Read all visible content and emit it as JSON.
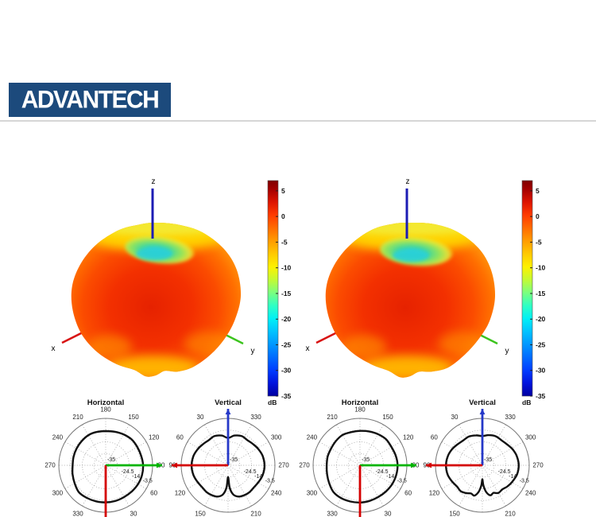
{
  "header": {
    "logo_text": "ADVANTECH",
    "logo_bg": "#1c4a7c",
    "divider_color": "#d6d6d6"
  },
  "colors": {
    "axis_x": "#d81414",
    "axis_y": "#3cc41e",
    "axis_z": "#1c1cb4",
    "arrow_green": "#00b400",
    "arrow_red": "#d40000",
    "arrow_blue": "#2538c8",
    "polar_grid": "#9a9a9a",
    "polar_ring": "#777777",
    "curve": "#111111",
    "label_text": "#222222",
    "top_band": "#ffd800",
    "top_band2": "#f2ee3e",
    "bottom_band": "#ffc400",
    "side_soft": "#ff9a00"
  },
  "colorbar": {
    "unit": "dB",
    "tick_labels": [
      "5",
      "0",
      "-5",
      "-10",
      "-15",
      "-20",
      "-25",
      "-30",
      "-35"
    ],
    "tick_values": [
      5,
      0,
      -5,
      -10,
      -15,
      -20,
      -25,
      -30,
      -35
    ],
    "range_db": [
      -35,
      7
    ],
    "gradient_stops": [
      [
        0,
        "#7f0000"
      ],
      [
        4,
        "#a40000"
      ],
      [
        10,
        "#dd1400"
      ],
      [
        16,
        "#ff3b00"
      ],
      [
        22,
        "#ff6c00"
      ],
      [
        28,
        "#ff9c00"
      ],
      [
        34,
        "#ffc900"
      ],
      [
        40,
        "#fdf100"
      ],
      [
        46,
        "#c4fa33"
      ],
      [
        52,
        "#7bff7f"
      ],
      [
        58,
        "#2fffc4"
      ],
      [
        64,
        "#00f0f5"
      ],
      [
        70,
        "#00c3ff"
      ],
      [
        76,
        "#0097ff"
      ],
      [
        82,
        "#006bff"
      ],
      [
        88,
        "#003cff"
      ],
      [
        94,
        "#0013dd"
      ],
      [
        100,
        "#0000a0"
      ]
    ]
  },
  "blob": {
    "gradient": [
      [
        0,
        "#e62200",
        1
      ],
      [
        40,
        "#f33000",
        1
      ],
      [
        65,
        "#fb4c00",
        1
      ],
      [
        82,
        "#ff6f00",
        1
      ],
      [
        93,
        "#ff8e08",
        1
      ],
      [
        100,
        "#ffa216",
        1
      ]
    ],
    "dimple_gradient": [
      [
        0,
        "#2bd0d8",
        1
      ],
      [
        35,
        "#45d89a",
        1
      ],
      [
        62,
        "#93e45a",
        1
      ],
      [
        82,
        "#e2ec3e",
        0.9
      ],
      [
        100,
        "#ffe600",
        0
      ]
    ]
  },
  "chart_data": [
    {
      "type": "surface3d",
      "position": "left",
      "palette": "jet",
      "axis_labels": {
        "x": "x",
        "y": "y",
        "z": "z"
      },
      "colorbar_unit": "dB",
      "colorbar_ticks": [
        5,
        0,
        -5,
        -10,
        -15,
        -20,
        -25,
        -30,
        -35
      ],
      "colorbar_range": [
        -35,
        7
      ],
      "silhouette": [
        [
          0,
          92
        ],
        [
          18,
          94
        ],
        [
          36,
          99
        ],
        [
          55,
          104
        ],
        [
          72,
          107
        ],
        [
          90,
          107
        ],
        [
          107,
          104
        ],
        [
          122,
          102
        ],
        [
          137,
          101
        ],
        [
          152,
          101
        ],
        [
          164,
          99
        ],
        [
          173,
          95
        ],
        [
          180,
          100
        ],
        [
          187,
          102
        ],
        [
          196,
          97
        ],
        [
          210,
          99
        ],
        [
          226,
          102
        ],
        [
          243,
          105
        ],
        [
          260,
          106
        ],
        [
          276,
          106
        ],
        [
          292,
          103
        ],
        [
          310,
          99
        ],
        [
          330,
          95
        ],
        [
          347,
          92
        ]
      ]
    },
    {
      "type": "surface3d",
      "position": "right",
      "palette": "jet",
      "axis_labels": {
        "x": "x",
        "y": "y",
        "z": "z"
      },
      "colorbar_unit": "dB",
      "colorbar_ticks": [
        5,
        0,
        -5,
        -10,
        -15,
        -20,
        -25,
        -30,
        -35
      ],
      "colorbar_range": [
        -35,
        7
      ],
      "silhouette": [
        [
          0,
          92
        ],
        [
          18,
          95
        ],
        [
          36,
          100
        ],
        [
          55,
          105
        ],
        [
          72,
          107
        ],
        [
          90,
          107
        ],
        [
          107,
          105
        ],
        [
          122,
          102
        ],
        [
          137,
          101
        ],
        [
          152,
          102
        ],
        [
          164,
          99
        ],
        [
          173,
          96
        ],
        [
          180,
          101
        ],
        [
          187,
          103
        ],
        [
          196,
          98
        ],
        [
          210,
          99
        ],
        [
          226,
          102
        ],
        [
          243,
          105
        ],
        [
          260,
          106
        ],
        [
          276,
          106
        ],
        [
          292,
          103
        ],
        [
          310,
          99
        ],
        [
          330,
          96
        ],
        [
          347,
          93
        ]
      ]
    },
    {
      "type": "polar",
      "title": "Horizontal",
      "zero_at": "bottom",
      "direction": "ccw",
      "r_ticks_db": [
        -35,
        -24.5,
        -14,
        -3.5
      ],
      "r_tick_labels": [
        "-35",
        "-24.5",
        "-14",
        "-3.5"
      ],
      "r_range_db": [
        -35,
        7
      ],
      "angle_step_deg": 30,
      "angle_labels": [
        30,
        60,
        90,
        120,
        150,
        180,
        210,
        240,
        270,
        300,
        330
      ],
      "arrows": [
        {
          "at_label": 90,
          "color_key": "arrow_green",
          "clipped": false
        },
        {
          "at_label": 0,
          "color_key": "arrow_red",
          "clipped": true
        }
      ],
      "series_deg_db": [
        [
          0,
          -1.8
        ],
        [
          15,
          -1.9
        ],
        [
          30,
          -2.1
        ],
        [
          45,
          -1.9
        ],
        [
          60,
          -1.5
        ],
        [
          75,
          -1.3
        ],
        [
          90,
          -1.5
        ],
        [
          105,
          -2.1
        ],
        [
          120,
          -2.3
        ],
        [
          135,
          -2.2
        ],
        [
          150,
          -3.0
        ],
        [
          165,
          -3.9
        ],
        [
          180,
          -4.4
        ],
        [
          195,
          -4.1
        ],
        [
          210,
          -3.9
        ],
        [
          225,
          -4.5
        ],
        [
          240,
          -4.9
        ],
        [
          255,
          -5.2
        ],
        [
          270,
          -5.4
        ],
        [
          285,
          -4.3
        ],
        [
          300,
          -2.9
        ],
        [
          315,
          -1.0
        ],
        [
          330,
          -1.3
        ],
        [
          345,
          -1.6
        ]
      ]
    },
    {
      "type": "polar",
      "title": "Vertical",
      "zero_at": "top",
      "direction": "ccw",
      "r_ticks_db": [
        -35,
        -24.5,
        -14,
        -3.5
      ],
      "r_tick_labels": [
        "-35",
        "-24.5",
        "-14",
        "-3.5"
      ],
      "r_range_db": [
        -35,
        7
      ],
      "angle_step_deg": 30,
      "angle_labels": [
        30,
        60,
        90,
        120,
        150,
        210,
        240,
        270,
        300,
        330
      ],
      "arrows": [
        {
          "at_label": 0,
          "color_key": "arrow_blue",
          "clipped": false
        },
        {
          "at_label": 90,
          "color_key": "arrow_red",
          "clipped": false
        }
      ],
      "series_deg_db": [
        [
          0,
          -10.5
        ],
        [
          12,
          -7.8
        ],
        [
          25,
          -6.2
        ],
        [
          38,
          -6.6
        ],
        [
          50,
          -5.6
        ],
        [
          62,
          -4.2
        ],
        [
          75,
          -2.9
        ],
        [
          90,
          -2.3
        ],
        [
          105,
          -2.7
        ],
        [
          118,
          -3.8
        ],
        [
          130,
          -4.6
        ],
        [
          142,
          -4.2
        ],
        [
          152,
          -4.6
        ],
        [
          162,
          -5.6
        ],
        [
          170,
          -8.5
        ],
        [
          176,
          -15
        ],
        [
          180,
          -24.5
        ],
        [
          184,
          -15
        ],
        [
          190,
          -8.5
        ],
        [
          198,
          -5.6
        ],
        [
          208,
          -4.6
        ],
        [
          218,
          -4.2
        ],
        [
          230,
          -4.6
        ],
        [
          242,
          -3.8
        ],
        [
          255,
          -2.7
        ],
        [
          270,
          -2.3
        ],
        [
          285,
          -2.9
        ],
        [
          298,
          -4.2
        ],
        [
          310,
          -5.6
        ],
        [
          322,
          -6.6
        ],
        [
          335,
          -6.2
        ],
        [
          348,
          -7.8
        ]
      ]
    },
    {
      "type": "polar",
      "title": "Horizontal",
      "zero_at": "bottom",
      "direction": "ccw",
      "r_ticks_db": [
        -35,
        -24.5,
        -14,
        -3.5
      ],
      "r_tick_labels": [
        "-35",
        "-24.5",
        "-14",
        "-3.5"
      ],
      "r_range_db": [
        -35,
        7
      ],
      "angle_step_deg": 30,
      "angle_labels": [
        30,
        60,
        90,
        120,
        150,
        180,
        210,
        240,
        270,
        300,
        330
      ],
      "arrows": [
        {
          "at_label": 90,
          "color_key": "arrow_green",
          "clipped": false
        },
        {
          "at_label": 0,
          "color_key": "arrow_red",
          "clipped": true
        }
      ],
      "series_deg_db": [
        [
          0,
          -1.7
        ],
        [
          15,
          -2.0
        ],
        [
          30,
          -2.2
        ],
        [
          45,
          -2.0
        ],
        [
          60,
          -1.6
        ],
        [
          75,
          -1.4
        ],
        [
          90,
          -1.3
        ],
        [
          105,
          -1.8
        ],
        [
          120,
          -2.4
        ],
        [
          135,
          -2.0
        ],
        [
          150,
          -2.8
        ],
        [
          165,
          -3.6
        ],
        [
          180,
          -4.2
        ],
        [
          195,
          -4.3
        ],
        [
          210,
          -3.7
        ],
        [
          225,
          -4.4
        ],
        [
          240,
          -5.1
        ],
        [
          255,
          -5.0
        ],
        [
          270,
          -5.2
        ],
        [
          285,
          -4.5
        ],
        [
          300,
          -3.1
        ],
        [
          315,
          -1.3
        ],
        [
          330,
          -1.1
        ],
        [
          345,
          -1.5
        ]
      ]
    },
    {
      "type": "polar",
      "title": "Vertical",
      "zero_at": "top",
      "direction": "ccw",
      "r_ticks_db": [
        -35,
        -24.5,
        -14,
        -3.5
      ],
      "r_tick_labels": [
        "-35",
        "-24.5",
        "-14",
        "-3.5"
      ],
      "r_range_db": [
        -35,
        7
      ],
      "angle_step_deg": 30,
      "angle_labels": [
        30,
        60,
        90,
        120,
        150,
        210,
        240,
        270,
        300,
        330
      ],
      "arrows": [
        {
          "at_label": 0,
          "color_key": "arrow_blue",
          "clipped": false
        },
        {
          "at_label": 90,
          "color_key": "arrow_red",
          "clipped": false
        }
      ],
      "series_deg_db": [
        [
          0,
          -8.8
        ],
        [
          12,
          -7.6
        ],
        [
          25,
          -6.6
        ],
        [
          38,
          -6.9
        ],
        [
          50,
          -5.9
        ],
        [
          62,
          -4.3
        ],
        [
          75,
          -3.0
        ],
        [
          90,
          -2.4
        ],
        [
          105,
          -2.8
        ],
        [
          118,
          -4.2
        ],
        [
          130,
          -5.4
        ],
        [
          140,
          -4.8
        ],
        [
          150,
          -6.2
        ],
        [
          158,
          -7.8
        ],
        [
          165,
          -6.9
        ],
        [
          172,
          -11
        ],
        [
          177,
          -17
        ],
        [
          180,
          -22.5
        ],
        [
          183,
          -17
        ],
        [
          188,
          -11
        ],
        [
          195,
          -7.2
        ],
        [
          202,
          -8.4
        ],
        [
          210,
          -6.4
        ],
        [
          220,
          -7.0
        ],
        [
          230,
          -5.6
        ],
        [
          242,
          -4.4
        ],
        [
          255,
          -2.9
        ],
        [
          270,
          -2.4
        ],
        [
          285,
          -3.1
        ],
        [
          298,
          -4.4
        ],
        [
          310,
          -6.0
        ],
        [
          322,
          -6.8
        ],
        [
          335,
          -6.4
        ],
        [
          348,
          -7.4
        ]
      ]
    }
  ]
}
